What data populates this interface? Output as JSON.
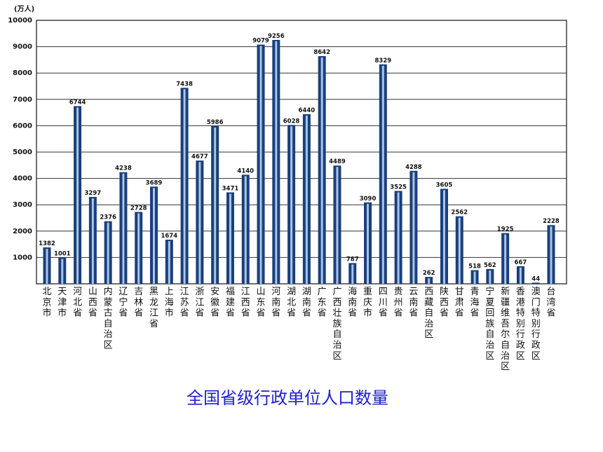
{
  "caption": "全国省级行政单位人口数量",
  "chart_data": {
    "type": "bar",
    "unit_label": "(万人)",
    "ylim": [
      0,
      10000
    ],
    "yticks": [
      1000,
      2000,
      3000,
      4000,
      5000,
      6000,
      7000,
      8000,
      9000,
      10000
    ],
    "grid": true,
    "categories": [
      "北京市",
      "天津市",
      "河北省",
      "山西省",
      "内蒙古自治区",
      "辽宁省",
      "吉林省",
      "黑龙江省",
      "上海市",
      "江苏省",
      "浙江省",
      "安徽省",
      "福建省",
      "江西省",
      "山东省",
      "河南省",
      "湖北省",
      "湖南省",
      "广东省",
      "广西壮族自治区",
      "海南省",
      "重庆市",
      "四川省",
      "贵州省",
      "云南省",
      "西藏自治区",
      "陕西省",
      "甘肃省",
      "青海省",
      "宁夏回族自治区",
      "新疆维吾尔自治区",
      "香港特别行政区",
      "澳门特别行政区",
      "台湾省"
    ],
    "values": [
      1382,
      1001,
      6744,
      3297,
      2376,
      4238,
      2728,
      3689,
      1674,
      7438,
      4677,
      5986,
      3471,
      4140,
      9079,
      9256,
      6028,
      6440,
      8642,
      4489,
      787,
      3090,
      8329,
      3525,
      4288,
      262,
      3605,
      2562,
      518,
      562,
      1925,
      667,
      44,
      2228
    ],
    "bar_color": "#1a3f7a"
  }
}
